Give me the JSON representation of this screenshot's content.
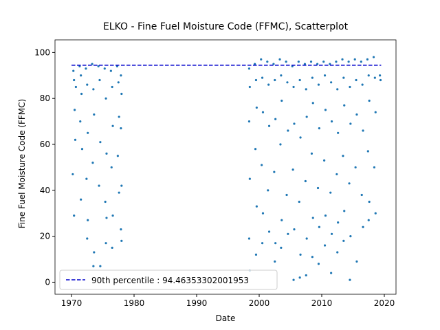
{
  "chart_data": {
    "type": "scatter",
    "title": "ELKO - Fine Fuel Moisture Code (FFMC), Scatterplot",
    "x_label": "Date",
    "y_label": "Fine Fuel Moisture Code (FFMC)",
    "color": "#1f77b4",
    "xlim": [
      1967.36,
      2021.87
    ],
    "ylim": [
      -5.25,
      105.5
    ],
    "xticks": [
      1970,
      1980,
      1990,
      2000,
      2010,
      2020
    ],
    "yticks": [
      0,
      20,
      40,
      60,
      80,
      100
    ],
    "legend_position": "lower left",
    "reference_line": {
      "name": "90th percentile : 94.46353302001953",
      "value": 94.46353302001953,
      "x": [
        1970.0,
        2019.5
      ],
      "color": "#0000cc"
    },
    "x": [
      1970.3,
      1970.4,
      1970.5,
      1970.6,
      1970.2,
      1970.4,
      1970.7,
      1971.3,
      1971.5,
      1971.6,
      1971.4,
      1971.7,
      1971.5,
      1972.3,
      1972.5,
      1972.6,
      1972.4,
      1972.6,
      1972.5,
      1973.3,
      1973.5,
      1973.6,
      1973.4,
      1973.6,
      1973.5,
      1974.3,
      1974.5,
      1974.6,
      1974.4,
      1974.6,
      1975.3,
      1975.5,
      1975.6,
      1975.4,
      1975.6,
      1975.5,
      1976.3,
      1976.5,
      1976.6,
      1976.4,
      1976.6,
      1976.5,
      1977.3,
      1977.5,
      1977.6,
      1977.4,
      1977.6,
      1977.9,
      1978.0,
      1977.9,
      1978.0,
      1977.9,
      1978.0,
      1998.4,
      1998.5,
      1998.4,
      1998.5,
      1998.4,
      1998.5,
      1999.3,
      1999.5,
      1999.6,
      1999.4,
      1999.6,
      1999.5,
      2000.3,
      2000.5,
      2000.6,
      2000.4,
      2000.6,
      2000.5,
      2001.3,
      2001.5,
      2001.6,
      2001.4,
      2001.6,
      2002.3,
      2002.5,
      2002.6,
      2002.4,
      2002.6,
      2002.5,
      2003.3,
      2003.5,
      2003.6,
      2003.4,
      2003.6,
      2003.5,
      2004.3,
      2004.5,
      2004.6,
      2004.4,
      2004.6,
      2005.3,
      2005.5,
      2005.6,
      2005.4,
      2005.6,
      2005.5,
      2006.3,
      2006.5,
      2006.6,
      2006.4,
      2006.6,
      2006.5,
      2007.3,
      2007.5,
      2007.6,
      2007.4,
      2007.6,
      2007.5,
      2008.3,
      2008.5,
      2008.6,
      2008.4,
      2008.6,
      2008.5,
      2009.3,
      2009.5,
      2009.6,
      2009.4,
      2009.6,
      2009.5,
      2010.3,
      2010.5,
      2010.6,
      2010.4,
      2010.6,
      2010.5,
      2011.3,
      2011.5,
      2011.6,
      2011.4,
      2011.6,
      2011.5,
      2012.3,
      2012.5,
      2012.6,
      2012.4,
      2012.6,
      2012.5,
      2013.3,
      2013.5,
      2013.6,
      2013.4,
      2013.6,
      2013.5,
      2014.3,
      2014.5,
      2014.6,
      2014.4,
      2014.6,
      2014.5,
      2015.3,
      2015.5,
      2015.6,
      2015.4,
      2015.6,
      2016.3,
      2016.5,
      2016.6,
      2016.4,
      2016.6,
      2017.3,
      2017.5,
      2017.6,
      2017.4,
      2017.6,
      2017.5,
      2018.3,
      2018.5,
      2018.6,
      2018.4,
      2018.6,
      2019.3,
      2019.4
    ],
    "y": [
      92,
      88,
      75,
      62,
      47,
      29,
      85,
      94,
      90,
      82,
      70,
      58,
      36,
      93,
      86,
      65,
      45,
      27,
      19,
      95,
      84,
      73,
      52,
      13,
      7,
      94,
      88,
      61,
      42,
      7,
      93,
      80,
      56,
      35,
      28,
      17,
      92,
      85,
      68,
      50,
      29,
      15,
      94,
      87,
      72,
      55,
      39,
      90,
      82,
      67,
      42,
      23,
      18,
      93,
      85,
      70,
      45,
      19,
      5,
      95,
      88,
      76,
      58,
      33,
      12,
      97,
      89,
      74,
      51,
      30,
      17,
      96,
      86,
      68,
      40,
      22,
      95,
      88,
      71,
      48,
      17,
      9,
      97,
      90,
      79,
      60,
      27,
      15,
      96,
      87,
      66,
      38,
      21,
      94,
      85,
      69,
      49,
      23,
      1,
      96,
      88,
      63,
      35,
      12,
      2,
      95,
      84,
      72,
      44,
      19,
      3,
      96,
      89,
      78,
      56,
      28,
      11,
      95,
      86,
      67,
      41,
      24,
      8,
      96,
      90,
      75,
      53,
      29,
      16,
      95,
      87,
      70,
      39,
      21,
      4,
      96,
      84,
      65,
      47,
      26,
      13,
      97,
      89,
      77,
      55,
      31,
      18,
      96,
      85,
      69,
      43,
      20,
      1,
      97,
      88,
      73,
      50,
      9,
      96,
      86,
      66,
      38,
      24,
      97,
      90,
      79,
      57,
      35,
      27,
      98,
      89,
      74,
      50,
      30,
      90,
      88
    ]
  }
}
